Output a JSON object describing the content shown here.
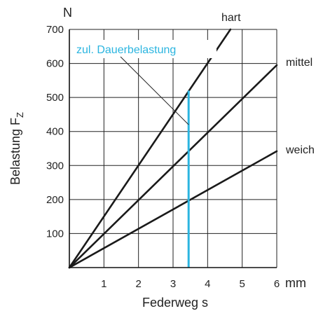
{
  "chart_data": {
    "type": "line",
    "xlabel": "Federweg s",
    "xunit": "mm",
    "ylabel": "Belastung F",
    "ylabel_sub": "Z",
    "yunit": "N",
    "xlim": [
      0,
      6
    ],
    "ylim": [
      0,
      700
    ],
    "xticks": [
      1,
      2,
      3,
      4,
      5,
      6
    ],
    "yticks": [
      100,
      200,
      300,
      400,
      500,
      600,
      700
    ],
    "grid": true,
    "series": [
      {
        "name": "hart",
        "x": [
          0,
          4.66
        ],
        "y": [
          0,
          700
        ]
      },
      {
        "name": "mittel",
        "x": [
          0,
          6
        ],
        "y": [
          0,
          595
        ]
      },
      {
        "name": "weich",
        "x": [
          0,
          6
        ],
        "y": [
          0,
          342
        ]
      }
    ],
    "annotation": {
      "text": "zul. Dauerbelastung",
      "x": 3.45,
      "y_range": [
        0,
        520
      ],
      "color": "#2bb5e0"
    }
  }
}
